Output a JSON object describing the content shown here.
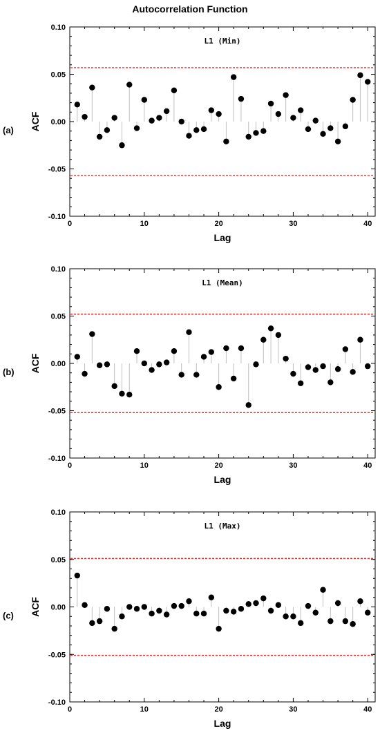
{
  "figure": {
    "title": "Autocorrelation Function",
    "colors": {
      "marker": "#000000",
      "stem": "#bfbfbf",
      "bound": "#e03030",
      "axis": "#000000"
    }
  },
  "chart_data": [
    {
      "type": "scatter",
      "style": "stem",
      "panel_label": "(a)",
      "title": "L1 (Min)",
      "xlabel": "Lag",
      "ylabel": "ACF",
      "xlim": [
        0,
        41
      ],
      "ylim": [
        -0.1,
        0.1
      ],
      "x_ticks": [
        "0",
        "10",
        "20",
        "30",
        "40"
      ],
      "y_ticks": [
        "0.10",
        "0.05",
        "0.00",
        "-0.05",
        "-0.10"
      ],
      "confidence_bounds": [
        0.057,
        -0.057
      ],
      "x": [
        1,
        2,
        3,
        4,
        5,
        6,
        7,
        8,
        9,
        10,
        11,
        12,
        13,
        14,
        15,
        16,
        17,
        18,
        19,
        20,
        21,
        22,
        23,
        24,
        25,
        26,
        27,
        28,
        29,
        30,
        31,
        32,
        33,
        34,
        35,
        36,
        37,
        38,
        39,
        40
      ],
      "values": [
        0.018,
        0.005,
        0.036,
        -0.016,
        -0.009,
        0.004,
        -0.025,
        0.039,
        -0.007,
        0.023,
        0.001,
        0.004,
        0.011,
        0.033,
        0.0,
        -0.015,
        -0.009,
        -0.008,
        0.012,
        0.008,
        -0.021,
        0.047,
        0.024,
        -0.016,
        -0.012,
        -0.01,
        0.019,
        0.008,
        0.028,
        0.004,
        0.012,
        -0.008,
        0.001,
        -0.013,
        -0.007,
        -0.021,
        -0.005,
        0.023,
        0.049,
        0.042
      ]
    },
    {
      "type": "scatter",
      "style": "stem",
      "panel_label": "(b)",
      "title": "L1 (Mean)",
      "xlabel": "Lag",
      "ylabel": "ACF",
      "xlim": [
        0,
        41
      ],
      "ylim": [
        -0.1,
        0.1
      ],
      "x_ticks": [
        "0",
        "10",
        "20",
        "30",
        "40"
      ],
      "y_ticks": [
        "0.10",
        "0.05",
        "0.00",
        "-0.05",
        "-0.10"
      ],
      "confidence_bounds": [
        0.052,
        -0.052
      ],
      "x": [
        1,
        2,
        3,
        4,
        5,
        6,
        7,
        8,
        9,
        10,
        11,
        12,
        13,
        14,
        15,
        16,
        17,
        18,
        19,
        20,
        21,
        22,
        23,
        24,
        25,
        26,
        27,
        28,
        29,
        30,
        31,
        32,
        33,
        34,
        35,
        36,
        37,
        38,
        39,
        40
      ],
      "values": [
        0.007,
        -0.011,
        0.031,
        -0.002,
        -0.001,
        -0.024,
        -0.032,
        -0.033,
        0.013,
        0.0,
        -0.007,
        -0.001,
        0.001,
        0.013,
        -0.012,
        0.033,
        -0.012,
        0.007,
        0.012,
        -0.025,
        0.016,
        -0.016,
        0.016,
        -0.044,
        -0.001,
        0.025,
        0.037,
        0.03,
        0.005,
        -0.011,
        -0.021,
        -0.004,
        -0.007,
        -0.003,
        -0.02,
        -0.006,
        0.015,
        -0.009,
        0.025,
        -0.003
      ]
    },
    {
      "type": "scatter",
      "style": "stem",
      "panel_label": "(c)",
      "title": "L1 (Max)",
      "xlabel": "Lag",
      "ylabel": "ACF",
      "xlim": [
        0,
        41
      ],
      "ylim": [
        -0.1,
        0.1
      ],
      "x_ticks": [
        "0",
        "10",
        "20",
        "30",
        "40"
      ],
      "y_ticks": [
        "0.10",
        "0.05",
        "0.00",
        "-0.05",
        "-0.10"
      ],
      "confidence_bounds": [
        0.051,
        -0.051
      ],
      "x": [
        1,
        2,
        3,
        4,
        5,
        6,
        7,
        8,
        9,
        10,
        11,
        12,
        13,
        14,
        15,
        16,
        17,
        18,
        19,
        20,
        21,
        22,
        23,
        24,
        25,
        26,
        27,
        28,
        29,
        30,
        31,
        32,
        33,
        34,
        35,
        36,
        37,
        38,
        39,
        40
      ],
      "values": [
        0.033,
        0.002,
        -0.017,
        -0.015,
        -0.002,
        -0.023,
        -0.01,
        0.0,
        -0.002,
        0.0,
        -0.007,
        -0.004,
        -0.008,
        0.001,
        0.001,
        0.006,
        -0.007,
        -0.007,
        0.01,
        -0.023,
        -0.004,
        -0.005,
        -0.002,
        0.003,
        0.004,
        0.009,
        -0.004,
        0.002,
        -0.01,
        -0.01,
        -0.017,
        0.001,
        -0.006,
        0.018,
        -0.015,
        0.004,
        -0.015,
        -0.018,
        0.006,
        -0.006
      ]
    }
  ]
}
